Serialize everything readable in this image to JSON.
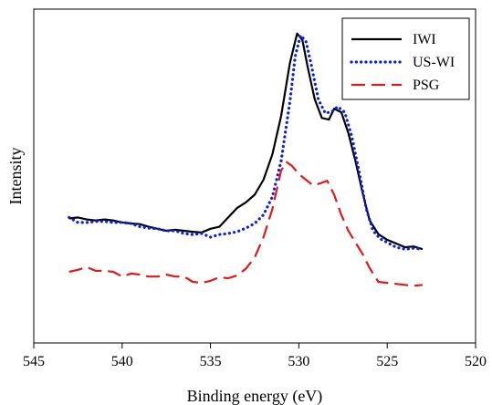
{
  "chart_data": {
    "type": "line",
    "title": "",
    "xlabel": "Binding energy (eV)",
    "ylabel": "Intensity",
    "xlim": [
      545,
      520
    ],
    "ylim": [
      0,
      100
    ],
    "x_reversed": true,
    "y_ticks_shown": false,
    "x_ticks": [
      545,
      540,
      535,
      530,
      525,
      520
    ],
    "x_tick_labels": [
      "545",
      "540",
      "535",
      "530",
      "525",
      "520"
    ],
    "grid": false,
    "legend_position": "top-right",
    "series": [
      {
        "name": "IWI",
        "color": "#000000",
        "style": "solid",
        "points": [
          [
            543,
            37.3
          ],
          [
            542.5,
            37.6
          ],
          [
            542,
            37.0
          ],
          [
            541.5,
            36.7
          ],
          [
            541,
            37.0
          ],
          [
            540.5,
            36.7
          ],
          [
            540,
            36.1
          ],
          [
            539.5,
            35.8
          ],
          [
            539,
            35.6
          ],
          [
            538.5,
            34.8
          ],
          [
            538,
            34.2
          ],
          [
            537.5,
            33.6
          ],
          [
            537,
            33.9
          ],
          [
            536.5,
            33.6
          ],
          [
            536,
            33.3
          ],
          [
            535.5,
            33.1
          ],
          [
            535,
            34.2
          ],
          [
            534.5,
            34.8
          ],
          [
            534,
            37.6
          ],
          [
            533.5,
            40.4
          ],
          [
            533,
            42.1
          ],
          [
            532.5,
            44.4
          ],
          [
            532,
            48.9
          ],
          [
            531.5,
            56.5
          ],
          [
            531,
            68.0
          ],
          [
            530.5,
            84.0
          ],
          [
            530.1,
            92.7
          ],
          [
            529.8,
            90.7
          ],
          [
            529.5,
            82.6
          ],
          [
            529.1,
            73.0
          ],
          [
            528.7,
            67.4
          ],
          [
            528.3,
            66.9
          ],
          [
            528.0,
            70.2
          ],
          [
            527.6,
            69.1
          ],
          [
            527.2,
            62.9
          ],
          [
            526.8,
            54.5
          ],
          [
            526.4,
            45.2
          ],
          [
            526.0,
            36.8
          ],
          [
            525.5,
            32.6
          ],
          [
            525.0,
            30.9
          ],
          [
            524.5,
            29.8
          ],
          [
            524.0,
            28.7
          ],
          [
            523.5,
            28.9
          ],
          [
            523,
            28.1
          ]
        ]
      },
      {
        "name": "US-WI",
        "color": "#0b1ee8",
        "style": "dotted",
        "points": [
          [
            543,
            37.6
          ],
          [
            542.5,
            36.1
          ],
          [
            542,
            36.1
          ],
          [
            541.5,
            36.4
          ],
          [
            541,
            36.4
          ],
          [
            540.5,
            36.1
          ],
          [
            540,
            36.1
          ],
          [
            539.5,
            35.8
          ],
          [
            539,
            34.8
          ],
          [
            538.5,
            34.4
          ],
          [
            538,
            34.2
          ],
          [
            537.5,
            33.6
          ],
          [
            537,
            33.6
          ],
          [
            536.5,
            32.8
          ],
          [
            536,
            32.5
          ],
          [
            535.5,
            32.8
          ],
          [
            535,
            31.7
          ],
          [
            534.5,
            32.5
          ],
          [
            534,
            32.8
          ],
          [
            533.5,
            33.3
          ],
          [
            533,
            34.4
          ],
          [
            532.5,
            35.8
          ],
          [
            532,
            38.4
          ],
          [
            531.5,
            43.8
          ],
          [
            531,
            54.5
          ],
          [
            530.5,
            72.5
          ],
          [
            530.2,
            86.0
          ],
          [
            529.9,
            92.1
          ],
          [
            529.6,
            90.4
          ],
          [
            529.3,
            83.4
          ],
          [
            528.9,
            73.0
          ],
          [
            528.5,
            68.8
          ],
          [
            528.1,
            69.4
          ],
          [
            527.8,
            70.8
          ],
          [
            527.4,
            69.1
          ],
          [
            527.0,
            61.8
          ],
          [
            526.6,
            51.7
          ],
          [
            526.2,
            40.4
          ],
          [
            525.8,
            33.6
          ],
          [
            525.4,
            31.2
          ],
          [
            525.0,
            30.1
          ],
          [
            524.5,
            28.7
          ],
          [
            524.0,
            28.1
          ],
          [
            523.5,
            28.4
          ],
          [
            523,
            28.1
          ]
        ]
      },
      {
        "name": "PSG",
        "color": "#e0191a",
        "style": "dashed",
        "points": [
          [
            543,
            21.3
          ],
          [
            542.5,
            21.9
          ],
          [
            542,
            22.7
          ],
          [
            541.5,
            21.6
          ],
          [
            541,
            21.6
          ],
          [
            540.5,
            21.3
          ],
          [
            540,
            19.9
          ],
          [
            539.5,
            20.8
          ],
          [
            539,
            20.5
          ],
          [
            538.5,
            19.9
          ],
          [
            538,
            19.9
          ],
          [
            537.5,
            20.5
          ],
          [
            537,
            19.9
          ],
          [
            536.5,
            19.9
          ],
          [
            536,
            18.3
          ],
          [
            535.5,
            18.0
          ],
          [
            535,
            18.6
          ],
          [
            534.5,
            19.7
          ],
          [
            534,
            19.4
          ],
          [
            533.5,
            20.2
          ],
          [
            533,
            22.2
          ],
          [
            532.5,
            25.6
          ],
          [
            532,
            31.7
          ],
          [
            531.5,
            40.1
          ],
          [
            531.0,
            51.7
          ],
          [
            530.7,
            54.2
          ],
          [
            530.4,
            53.1
          ],
          [
            530,
            50.6
          ],
          [
            529.6,
            48.9
          ],
          [
            529.2,
            47.2
          ],
          [
            528.8,
            47.8
          ],
          [
            528.4,
            48.6
          ],
          [
            528,
            44.4
          ],
          [
            527.6,
            38.4
          ],
          [
            527.2,
            33.6
          ],
          [
            526.8,
            30.1
          ],
          [
            526.4,
            26.7
          ],
          [
            526,
            22.5
          ],
          [
            525.5,
            18.3
          ],
          [
            525.0,
            18.0
          ],
          [
            524.5,
            17.7
          ],
          [
            524,
            17.4
          ],
          [
            523.5,
            17.1
          ],
          [
            523,
            17.4
          ]
        ]
      }
    ]
  }
}
